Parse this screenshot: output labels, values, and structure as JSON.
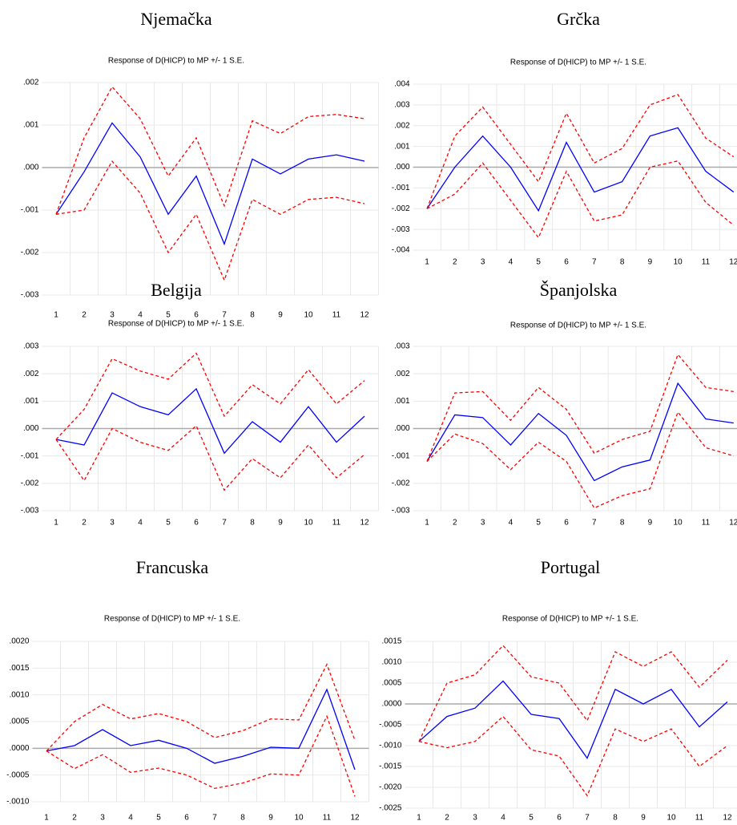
{
  "chart_data": [
    {
      "type": "line",
      "title": "Njemačka",
      "subtitle": "Response of D(HICP) to MP +/- 1 S.E.",
      "categories": [
        "1",
        "2",
        "3",
        "4",
        "5",
        "6",
        "7",
        "8",
        "9",
        "10",
        "11",
        "12"
      ],
      "ylim": [
        -0.003,
        0.002
      ],
      "yticks": [
        {
          "value": 0.002,
          "label": ".002"
        },
        {
          "value": 0.001,
          "label": ".001"
        },
        {
          "value": 0,
          "label": ".000"
        },
        {
          "value": -0.001,
          "label": "-.001"
        },
        {
          "value": -0.002,
          "label": "-.002"
        },
        {
          "value": -0.003,
          "label": "-.003"
        }
      ],
      "grid": true,
      "series": [
        {
          "color": "#0000ff",
          "values": [
            -0.0011,
            -0.0001,
            0.00105,
            0.00025,
            -0.0011,
            -0.0002,
            -0.0018,
            0.0002,
            -0.00015,
            0.0002,
            0.0003,
            0.00015
          ]
        },
        {
          "color": "#ff0000",
          "dashed": true,
          "values": [
            -0.0011,
            0.0007,
            0.0019,
            0.00115,
            -0.0002,
            0.0007,
            -0.0009,
            0.0011,
            0.0008,
            0.0012,
            0.00125,
            0.00115
          ]
        },
        {
          "color": "#ff0000",
          "dashed": true,
          "values": [
            -0.0011,
            -0.001,
            0.00015,
            -0.0006,
            -0.002,
            -0.0011,
            -0.00265,
            -0.00075,
            -0.0011,
            -0.00075,
            -0.0007,
            -0.00085
          ]
        }
      ]
    },
    {
      "type": "line",
      "title": "Grčka",
      "subtitle": "Response of D(HICP) to MP +/- 1 S.E.",
      "categories": [
        "1",
        "2",
        "3",
        "4",
        "5",
        "6",
        "7",
        "8",
        "9",
        "10",
        "11",
        "12"
      ],
      "ylim": [
        -0.004,
        0.004
      ],
      "yticks": [
        {
          "value": 0.004,
          "label": ".004"
        },
        {
          "value": 0.003,
          "label": ".003"
        },
        {
          "value": 0.002,
          "label": ".002"
        },
        {
          "value": 0.001,
          "label": ".001"
        },
        {
          "value": 0,
          "label": ".000"
        },
        {
          "value": -0.001,
          "label": "-.001"
        },
        {
          "value": -0.002,
          "label": "-.002"
        },
        {
          "value": -0.003,
          "label": "-.003"
        },
        {
          "value": -0.004,
          "label": "-.004"
        }
      ],
      "grid": true,
      "series": [
        {
          "color": "#0000ff",
          "values": [
            -0.002,
            0,
            0.0015,
            0,
            -0.0021,
            0.0012,
            -0.0012,
            -0.0007,
            0.0015,
            0.0019,
            -0.0002,
            -0.0012
          ]
        },
        {
          "color": "#ff0000",
          "dashed": true,
          "values": [
            -0.002,
            0.0015,
            0.0029,
            0.0011,
            -0.0007,
            0.0026,
            0.0002,
            0.0009,
            0.003,
            0.0035,
            0.0014,
            0.0005
          ]
        },
        {
          "color": "#ff0000",
          "dashed": true,
          "values": [
            -0.002,
            -0.0013,
            0.0002,
            -0.0016,
            -0.0034,
            -0.0002,
            -0.0026,
            -0.0023,
            0,
            0.0003,
            -0.0017,
            -0.0028
          ]
        }
      ]
    },
    {
      "type": "line",
      "title": "Belgija",
      "subtitle": "Response of D(HICP) to MP +/- 1 S.E.",
      "categories": [
        "1",
        "2",
        "3",
        "4",
        "5",
        "6",
        "7",
        "8",
        "9",
        "10",
        "11",
        "12"
      ],
      "ylim": [
        -0.003,
        0.003
      ],
      "yticks": [
        {
          "value": 0.003,
          "label": ".003"
        },
        {
          "value": 0.002,
          "label": ".002"
        },
        {
          "value": 0.001,
          "label": ".001"
        },
        {
          "value": 0,
          "label": ".000"
        },
        {
          "value": -0.001,
          "label": "-.001"
        },
        {
          "value": -0.002,
          "label": "-.002"
        },
        {
          "value": -0.003,
          "label": "-.003"
        }
      ],
      "grid": true,
      "series": [
        {
          "color": "#0000ff",
          "values": [
            -0.0004,
            -0.0006,
            0.0013,
            0.0008,
            0.0005,
            0.00145,
            -0.0009,
            0.00025,
            -0.0005,
            0.0008,
            -0.0005,
            0.00045
          ]
        },
        {
          "color": "#ff0000",
          "dashed": true,
          "values": [
            -0.0004,
            0.0007,
            0.00255,
            0.0021,
            0.0018,
            0.00275,
            0.00045,
            0.0016,
            0.0009,
            0.00215,
            0.0009,
            0.00175
          ]
        },
        {
          "color": "#ff0000",
          "dashed": true,
          "values": [
            -0.0004,
            -0.0019,
            0,
            -0.0005,
            -0.0008,
            0.0001,
            -0.00225,
            -0.0011,
            -0.0018,
            -0.0006,
            -0.0018,
            -0.00095
          ]
        }
      ]
    },
    {
      "type": "line",
      "title": "Španjolska",
      "subtitle": "Response of D(HICP) to MP +/- 1 S.E.",
      "categories": [
        "1",
        "2",
        "3",
        "4",
        "5",
        "6",
        "7",
        "8",
        "9",
        "10",
        "11",
        "12"
      ],
      "ylim": [
        -0.003,
        0.003
      ],
      "yticks": [
        {
          "value": 0.003,
          "label": ".003"
        },
        {
          "value": 0.002,
          "label": ".002"
        },
        {
          "value": 0.001,
          "label": ".001"
        },
        {
          "value": 0,
          "label": ".000"
        },
        {
          "value": -0.001,
          "label": "-.001"
        },
        {
          "value": -0.002,
          "label": "-.002"
        },
        {
          "value": -0.003,
          "label": "-.003"
        }
      ],
      "grid": true,
      "series": [
        {
          "color": "#0000ff",
          "values": [
            -0.0012,
            0.0005,
            0.0004,
            -0.0006,
            0.00055,
            -0.00025,
            -0.0019,
            -0.0014,
            -0.00115,
            0.00165,
            0.00035,
            0.0002
          ]
        },
        {
          "color": "#ff0000",
          "dashed": true,
          "values": [
            -0.0012,
            0.0013,
            0.00135,
            0.0003,
            0.0015,
            0.0007,
            -0.0009,
            -0.0004,
            -0.0001,
            0.0027,
            0.0015,
            0.00135
          ]
        },
        {
          "color": "#ff0000",
          "dashed": true,
          "values": [
            -0.0012,
            -0.0002,
            -0.00055,
            -0.0015,
            -0.0005,
            -0.0012,
            -0.0029,
            -0.00245,
            -0.0022,
            0.0006,
            -0.0007,
            -0.001
          ]
        }
      ]
    },
    {
      "type": "line",
      "title": "Francuska",
      "subtitle": "Response of D(HICP) to MP +/- 1 S.E.",
      "categories": [
        "1",
        "2",
        "3",
        "4",
        "5",
        "6",
        "7",
        "8",
        "9",
        "10",
        "11",
        "12"
      ],
      "ylim": [
        -0.001,
        0.002
      ],
      "yticks": [
        {
          "value": 0.002,
          "label": ".0020"
        },
        {
          "value": 0.0015,
          "label": ".0015"
        },
        {
          "value": 0.001,
          "label": ".0010"
        },
        {
          "value": 0.0005,
          "label": ".0005"
        },
        {
          "value": 0,
          "label": ".0000"
        },
        {
          "value": -0.0005,
          "label": "-.0005"
        },
        {
          "value": -0.001,
          "label": "-.0010"
        }
      ],
      "grid": true,
      "series": [
        {
          "color": "#0000ff",
          "values": [
            -5e-05,
            5e-05,
            0.00035,
            5e-05,
            0.00015,
            0,
            -0.00028,
            -0.00015,
            2e-05,
            0,
            0.0011,
            -0.0004
          ]
        },
        {
          "color": "#ff0000",
          "dashed": true,
          "values": [
            -5e-05,
            0.0005,
            0.00082,
            0.00055,
            0.00065,
            0.0005,
            0.0002,
            0.00033,
            0.00055,
            0.00053,
            0.00157,
            0.00015
          ]
        },
        {
          "color": "#ff0000",
          "dashed": true,
          "values": [
            -5e-05,
            -0.00038,
            -0.00012,
            -0.00045,
            -0.00037,
            -0.0005,
            -0.00075,
            -0.00065,
            -0.00048,
            -0.0005,
            0.0006,
            -0.0009
          ]
        }
      ]
    },
    {
      "type": "line",
      "title": "Portugal",
      "subtitle": "Response of D(HICP) to MP +/- 1 S.E.",
      "categories": [
        "1",
        "2",
        "3",
        "4",
        "5",
        "6",
        "7",
        "8",
        "9",
        "10",
        "11",
        "12"
      ],
      "ylim": [
        -0.0025,
        0.0015
      ],
      "yticks": [
        {
          "value": 0.0015,
          "label": ".0015"
        },
        {
          "value": 0.001,
          "label": ".0010"
        },
        {
          "value": 0.0005,
          "label": ".0005"
        },
        {
          "value": 0,
          "label": ".0000"
        },
        {
          "value": -0.0005,
          "label": "-.0005"
        },
        {
          "value": -0.001,
          "label": "-.0010"
        },
        {
          "value": -0.0015,
          "label": "-.0015"
        },
        {
          "value": -0.002,
          "label": "-.0020"
        },
        {
          "value": -0.0025,
          "label": "-.0025"
        }
      ],
      "grid": true,
      "series": [
        {
          "color": "#0000ff",
          "values": [
            -0.0009,
            -0.0003,
            -0.0001,
            0.00055,
            -0.00025,
            -0.00035,
            -0.0013,
            0.00035,
            0,
            0.00035,
            -0.00055,
            5e-05
          ]
        },
        {
          "color": "#ff0000",
          "dashed": true,
          "values": [
            -0.0009,
            0.0005,
            0.0007,
            0.0014,
            0.00065,
            0.0005,
            -0.0004,
            0.00125,
            0.0009,
            0.00125,
            0.0004,
            0.00105
          ]
        },
        {
          "color": "#ff0000",
          "dashed": true,
          "values": [
            -0.0009,
            -0.00105,
            -0.0009,
            -0.0003,
            -0.0011,
            -0.00125,
            -0.0022,
            -0.0006,
            -0.0009,
            -0.0006,
            -0.0015,
            -0.001
          ]
        }
      ]
    }
  ]
}
